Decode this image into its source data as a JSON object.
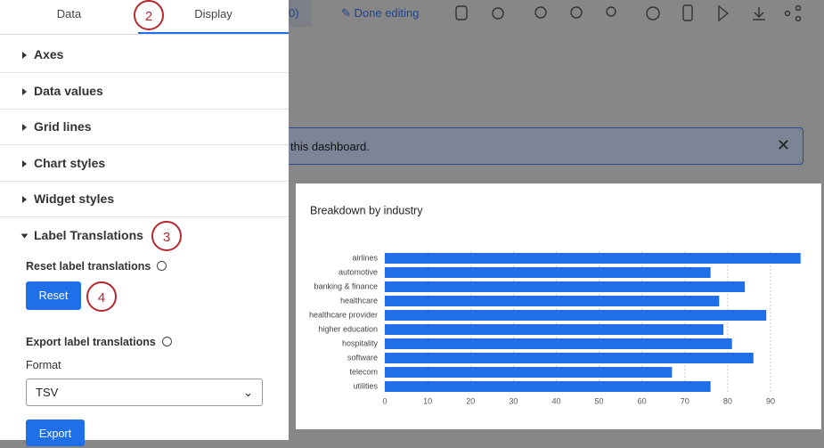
{
  "tabs": [
    "Data",
    "Display"
  ],
  "callouts": [
    "2",
    "3",
    "4"
  ],
  "sections": [
    "Axes",
    "Data values",
    "Grid lines",
    "Chart styles",
    "Widget styles",
    "Label Translations"
  ],
  "reset": {
    "label": "Reset label translations",
    "button": "Reset"
  },
  "export": {
    "label": "Export label translations",
    "format_label": "Format",
    "format_value": "TSV",
    "button": "Export"
  },
  "toolbar": {
    "partial": "0)",
    "done": "Done editing"
  },
  "banner": "this dashboard.",
  "chart_data": {
    "type": "bar",
    "orientation": "horizontal",
    "title": "Breakdown by industry",
    "categories": [
      "airlines",
      "automotive",
      "banking & finance",
      "healthcare",
      "healthcare provider",
      "higher education",
      "hospitality",
      "software",
      "telecom",
      "utilities"
    ],
    "values": [
      97,
      76,
      84,
      78,
      89,
      79,
      81,
      86,
      67,
      76
    ],
    "color": "#1f6fe8",
    "xlim": [
      0,
      97
    ],
    "xticks": [
      0,
      10,
      20,
      30,
      40,
      50,
      60,
      70,
      80,
      90
    ],
    "grid": true
  }
}
